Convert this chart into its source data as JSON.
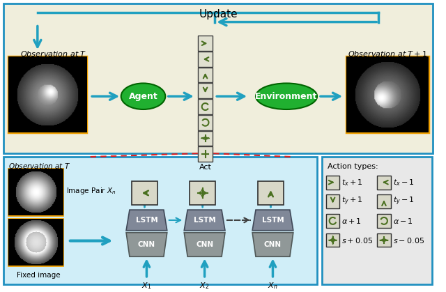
{
  "bg_top": "#f0eedc",
  "bg_bottom": "#d0eef8",
  "bg_action": "#e8e8e8",
  "border_blue": "#2090c0",
  "border_yellow": "#f0a000",
  "arrow_blue": "#20a0c0",
  "green_ellipse": "#20b030",
  "action_box_bg": "#5a5a5a",
  "action_arrow_color": "#4a7020",
  "lstm_color": "#808080",
  "cnn_color": "#909090",
  "red_dashed": "#e02020",
  "title": "Update",
  "obs_T": "Observation at $T$",
  "obs_T1": "Observation at $T+1$",
  "obs_T_bottom": "Observation at $T$",
  "fixed_image": "Fixed image",
  "image_pair": "Image Pair $X_n$",
  "act_label": "Act",
  "action_types_title": "Action types:",
  "agent_label": "Agent",
  "env_label": "Environment"
}
